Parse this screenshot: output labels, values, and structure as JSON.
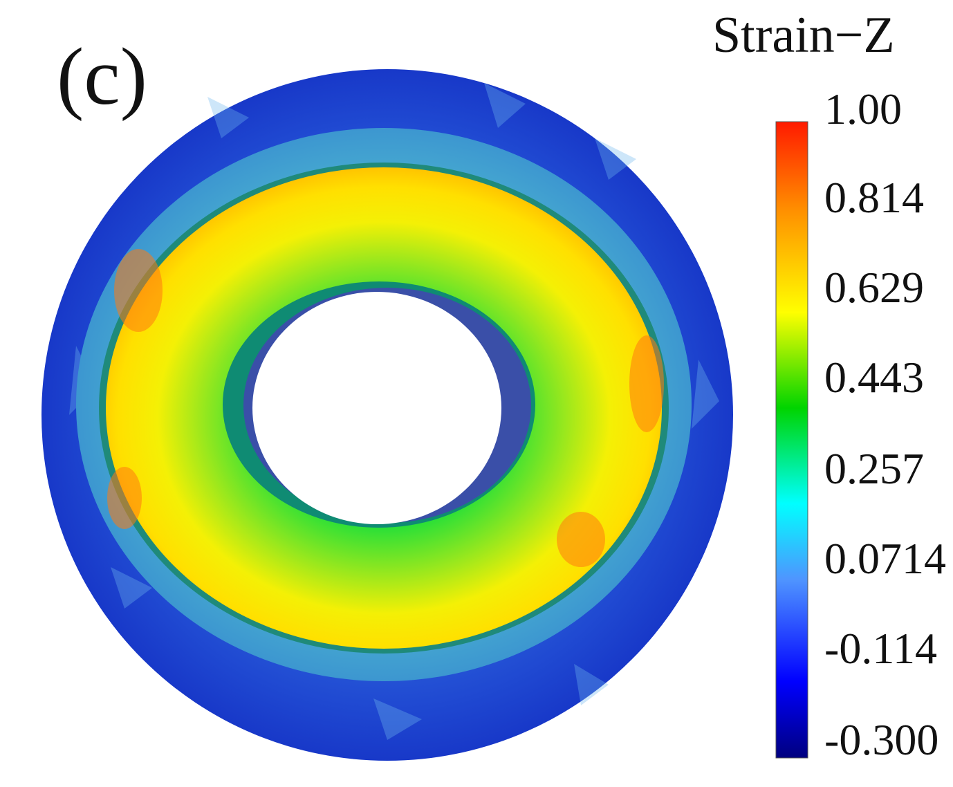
{
  "panel_label": "(c)",
  "legend": {
    "title": "Strain−Z",
    "min": -0.3,
    "max": 1.0,
    "ticks": [
      "1.00",
      "0.814",
      "0.629",
      "0.443",
      "0.257",
      "0.0714",
      "-0.114",
      "-0.300"
    ],
    "colormap": [
      "#00007f",
      "#0000ff",
      "#4fa0ff",
      "#00ffff",
      "#00d400",
      "#ffff00",
      "#ff8c00",
      "#ff1a00"
    ]
  },
  "figure": {
    "outer_region_color": "#2a5bd8",
    "middle_ring_color": "#49b7c8",
    "inner_ring_color": "#ffe600",
    "core_ring_color": "#18d84a",
    "hole_color": "#ffffff"
  }
}
